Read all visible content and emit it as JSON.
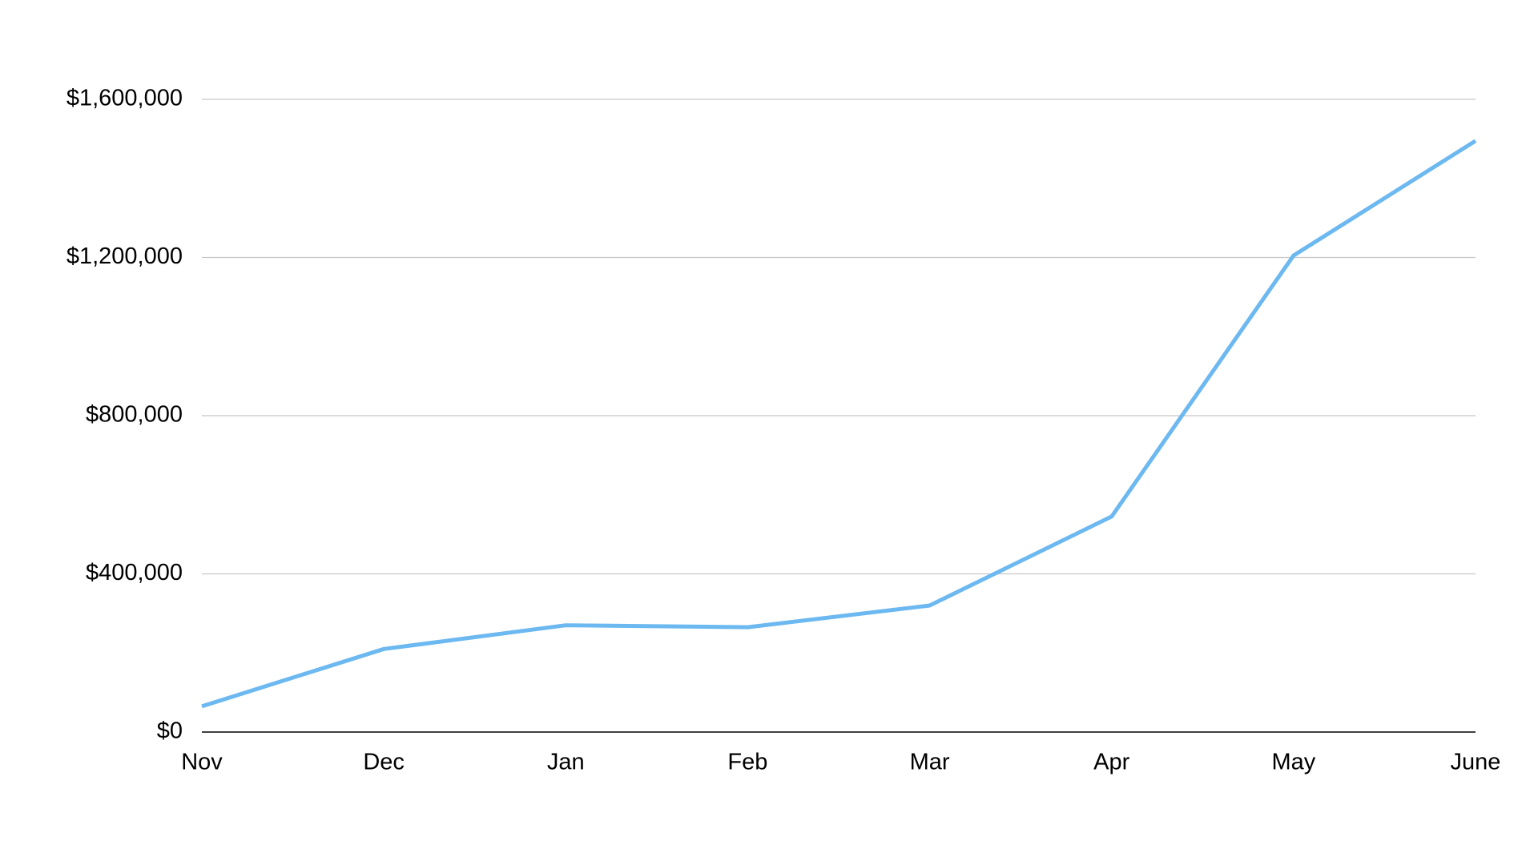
{
  "chart_data": {
    "type": "line",
    "categories": [
      "Nov",
      "Dec",
      "Jan",
      "Feb",
      "Mar",
      "Apr",
      "May",
      "June"
    ],
    "values": [
      65000,
      210000,
      270000,
      265000,
      320000,
      545000,
      1205000,
      1495000
    ],
    "color": "#6cb8f0",
    "ylim": [
      0,
      1600000
    ],
    "yticks": [
      {
        "value": 0,
        "label": "$0"
      },
      {
        "value": 400000,
        "label": "$400,000"
      },
      {
        "value": 800000,
        "label": "$800,000"
      },
      {
        "value": 1200000,
        "label": "$1,200,000"
      },
      {
        "value": 1600000,
        "label": "$1,600,000"
      }
    ],
    "grid": true
  }
}
